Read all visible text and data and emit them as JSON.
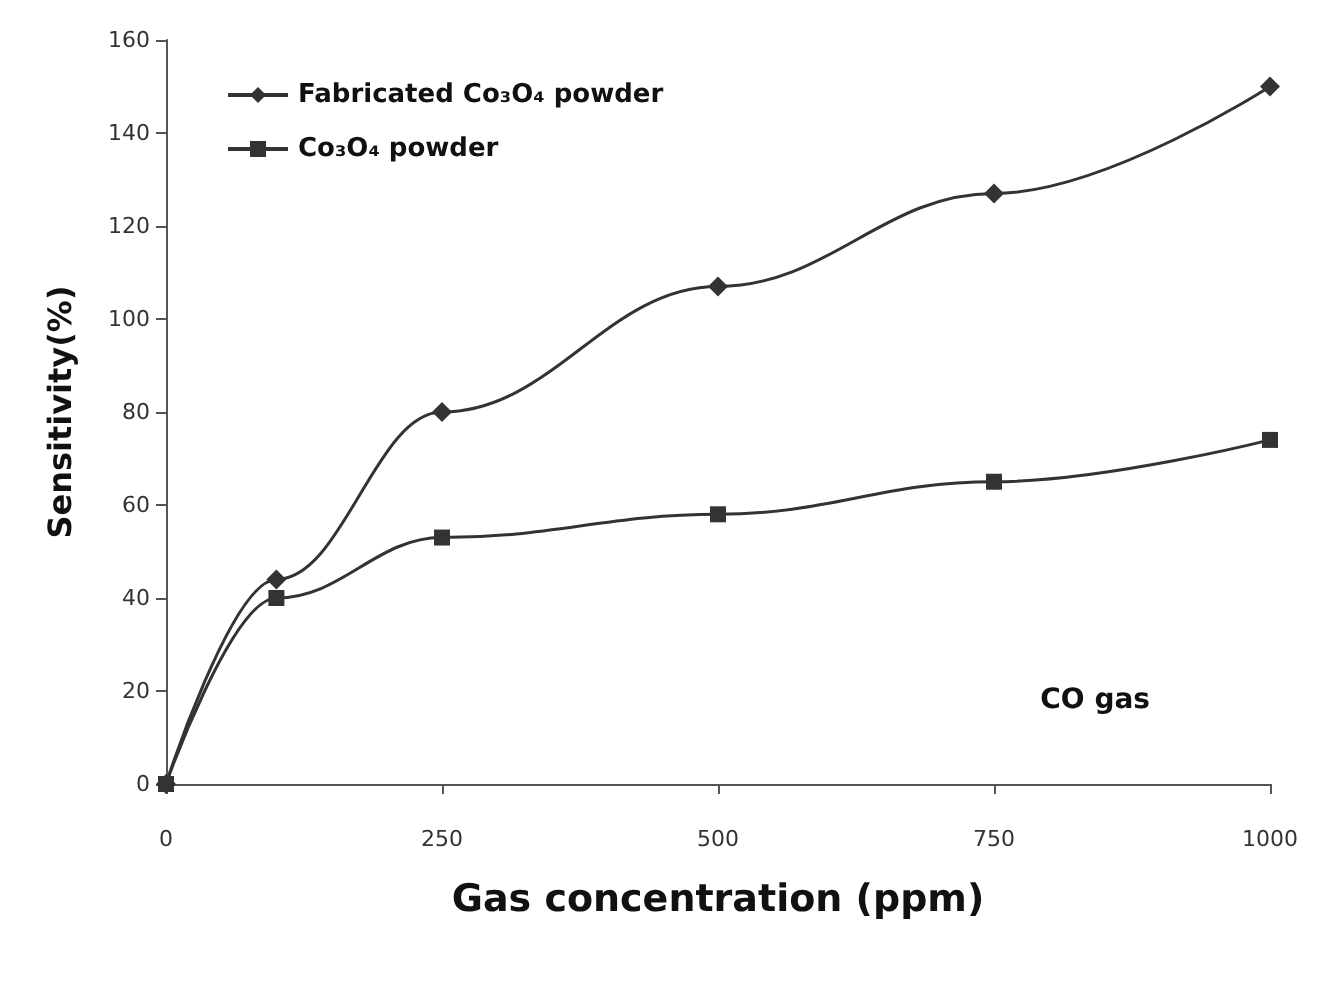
{
  "chart_data": {
    "type": "line",
    "xlabel": "Gas concentration (ppm)",
    "ylabel": "Sensitivity(%)",
    "x": [
      0,
      100,
      250,
      500,
      750,
      1000
    ],
    "series": [
      {
        "name": "Fabricated Co₃O₄ powder",
        "color": "#333333",
        "marker": "diamond",
        "values": [
          0,
          44,
          80,
          107,
          127,
          150
        ]
      },
      {
        "name": "Co₃O₄ powder",
        "color": "#333333",
        "marker": "square",
        "values": [
          0,
          40,
          53,
          58,
          65,
          74
        ]
      }
    ],
    "xlim": [
      0,
      1000
    ],
    "xticks": [
      0,
      250,
      500,
      750,
      1000
    ],
    "ylim": [
      0,
      160
    ],
    "yticks": [
      0,
      20,
      40,
      60,
      80,
      100,
      120,
      140,
      160
    ],
    "grid": false,
    "legend": "top left",
    "annotations": [
      "CO gas"
    ]
  }
}
